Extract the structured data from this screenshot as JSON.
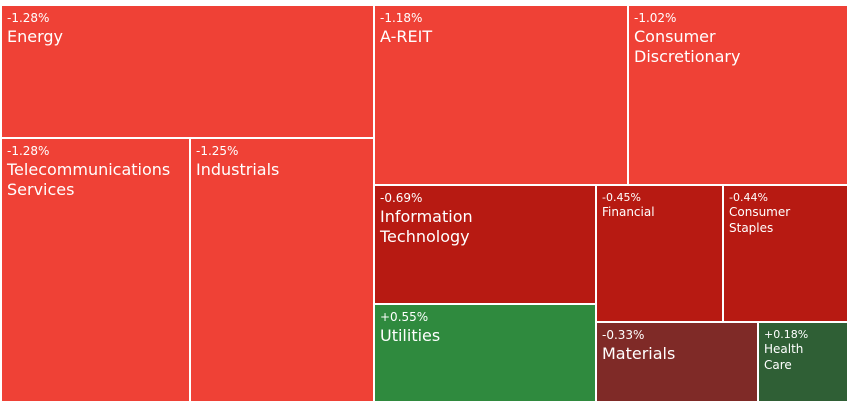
{
  "chart_data": {
    "type": "treemap",
    "title": "",
    "colors": {
      "strong_negative": "#ef4136",
      "moderate_negative": "#b71a12",
      "mild_negative": "#7f2a27",
      "positive": "#2f8a3e",
      "mild_positive": "#2f5f35"
    },
    "sectors": [
      {
        "id": "energy",
        "pct": "-1.28%",
        "label": "Energy",
        "color": "#ef4136"
      },
      {
        "id": "telecom",
        "pct": "-1.28%",
        "label": "Telecommunications\nServices",
        "color": "#ef4136"
      },
      {
        "id": "industrials",
        "pct": "-1.25%",
        "label": "Industrials",
        "color": "#ef4136"
      },
      {
        "id": "areit",
        "pct": "-1.18%",
        "label": "A-REIT",
        "color": "#ef4136"
      },
      {
        "id": "consdisc",
        "pct": "-1.02%",
        "label": "Consumer\nDiscretionary",
        "color": "#ef4136"
      },
      {
        "id": "infotech",
        "pct": "-0.69%",
        "label": "Information\nTechnology",
        "color": "#b71a12"
      },
      {
        "id": "financial",
        "pct": "-0.45%",
        "label": "Financial",
        "color": "#b71a12"
      },
      {
        "id": "consstaples",
        "pct": "-0.44%",
        "label": "Consumer\nStaples",
        "color": "#b71a12"
      },
      {
        "id": "utilities",
        "pct": "+0.55%",
        "label": "Utilities",
        "color": "#2f8a3e"
      },
      {
        "id": "materials",
        "pct": "-0.33%",
        "label": "Materials",
        "color": "#7f2a27"
      },
      {
        "id": "healthcare",
        "pct": "+0.18%",
        "label": "Health\nCare",
        "color": "#2f5f35"
      }
    ]
  }
}
